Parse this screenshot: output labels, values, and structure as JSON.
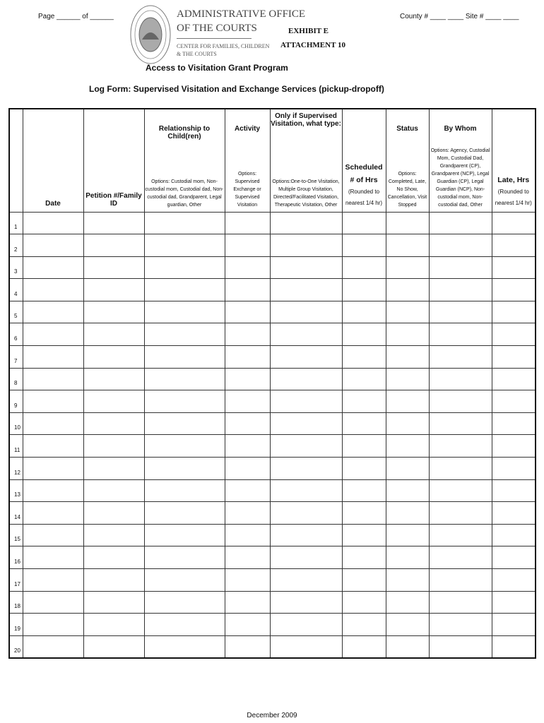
{
  "header": {
    "page_label": "Page ______ of ______",
    "county_site": "County # ____ ____     Site # ____ ____",
    "org_line1": "ADMINISTRATIVE OFFICE",
    "org_line2": "OF THE COURTS",
    "org_line3": "CENTER FOR FAMILIES, CHILDREN",
    "org_line4": "& THE COURTS",
    "exhibit": "EXHIBIT E",
    "attachment": "ATTACHMENT 10",
    "program": "Access to Visitation Grant Program",
    "form_title": "Log Form: Supervised Visitation and Exchange Services (pickup-dropoff)"
  },
  "columns": [
    {
      "title": "",
      "options": ""
    },
    {
      "title": "Date",
      "options": ""
    },
    {
      "title": "Petition #/Family ID",
      "options": ""
    },
    {
      "title": "Relationship to Child(ren)",
      "options": "Options: Custodial mom, Non-custodial mom, Custodial dad, Non-custodial dad, Grandparent, Legal guardian, Other"
    },
    {
      "title": "Activity",
      "options": "Options: Supervised Exchange or Supervised Visitation"
    },
    {
      "title": "Only if Supervised Visitation, what type:",
      "options": "Options:One-to-One Visitation, Multiple Group Visitation, Directed/Facilitated Visitation, Therapeutic Visitation, Other"
    },
    {
      "title": "Scheduled # of Hrs",
      "options": "(Rounded to nearest 1/4 hr)"
    },
    {
      "title": "Status",
      "options": "Options: Completed, Late, No Show, Cancellation, Visit Stopped"
    },
    {
      "title": "By Whom",
      "options": "Options:  Agency, Custodial Mom, Custodial Dad, Grandparent (CP), Grandparent (NCP), Legal Guardian (CP), Legal Guardian (NCP), Non-custodial mom, Non-custodial dad, Other"
    },
    {
      "title": "Late, Hrs",
      "options": "(Rounded to nearest 1/4 hr)"
    }
  ],
  "rows": [
    "1",
    "2",
    "3",
    "4",
    "5",
    "6",
    "7",
    "8",
    "9",
    "10",
    "11",
    "12",
    "13",
    "14",
    "15",
    "16",
    "17",
    "18",
    "19",
    "20"
  ],
  "footer": "December 2009"
}
